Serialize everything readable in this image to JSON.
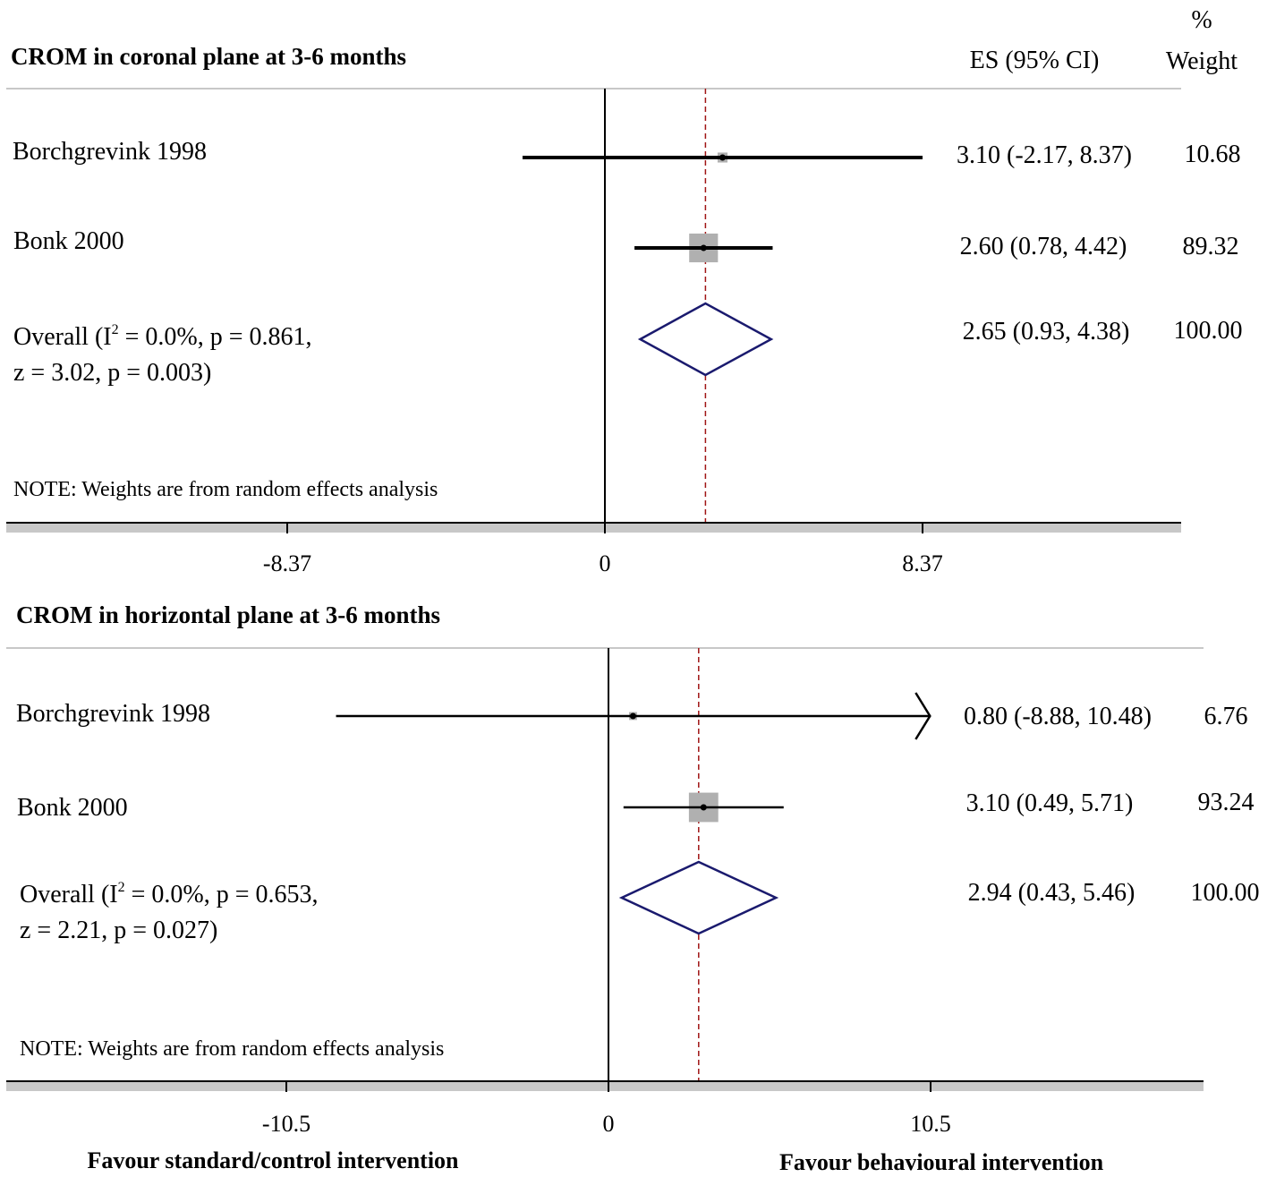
{
  "header": {
    "pct": "%",
    "es": "ES (95% CI)",
    "weight": "Weight"
  },
  "footer": {
    "left": "Favour standard/control intervention",
    "right": "Favour behavioural intervention"
  },
  "colors": {
    "ci_line": "#000000",
    "marker_box": "#b0b0b0",
    "diamond": "#1a1a6e",
    "overall_line": "#a01515",
    "rule": "#c8c8c8"
  },
  "chart_data": [
    {
      "type": "forest",
      "title": "CROM in coronal plane at 3-6 months",
      "note": "NOTE: Weights are from random effects analysis",
      "xlim": [
        -8.37,
        8.37
      ],
      "x_ticks": [
        -8.37,
        0,
        8.37
      ],
      "x_tick_labels": [
        "-8.37",
        "0",
        "8.37"
      ],
      "studies": [
        {
          "name": "Borchgrevink 1998",
          "es": 3.1,
          "lo": -2.17,
          "hi": 8.37,
          "es_text": "3.10 (-2.17, 8.37)",
          "weight": 10.68,
          "weight_text": "10.68"
        },
        {
          "name": "Bonk 2000",
          "es": 2.6,
          "lo": 0.78,
          "hi": 4.42,
          "es_text": "2.60 (0.78, 4.42)",
          "weight": 89.32,
          "weight_text": "89.32"
        }
      ],
      "overall": {
        "line1": "Overall (I",
        "sup": "2",
        "line1b": " = 0.0%, p = 0.861,",
        "line2": "z = 3.02, p = 0.003)",
        "es": 2.65,
        "lo": 0.93,
        "hi": 4.38,
        "es_text": "2.65 (0.93, 4.38)",
        "weight_text": "100.00"
      }
    },
    {
      "type": "forest",
      "title": "CROM in horizontal plane at 3-6 months",
      "note": "NOTE: Weights are from random effects analysis",
      "xlim": [
        -10.5,
        10.5
      ],
      "x_ticks": [
        -10.5,
        0,
        10.5
      ],
      "x_tick_labels": [
        "-10.5",
        "0",
        "10.5"
      ],
      "studies": [
        {
          "name": "Borchgrevink 1998",
          "es": 0.8,
          "lo": -8.88,
          "hi": 10.48,
          "es_text": "0.80 (-8.88, 10.48)",
          "weight": 6.76,
          "weight_text": "6.76",
          "truncated_hi": true
        },
        {
          "name": "Bonk 2000",
          "es": 3.1,
          "lo": 0.49,
          "hi": 5.71,
          "es_text": "3.10 (0.49, 5.71)",
          "weight": 93.24,
          "weight_text": "93.24"
        }
      ],
      "overall": {
        "line1": "Overall (I",
        "sup": "2",
        "line1b": " = 0.0%, p = 0.653,",
        "line2": "z = 2.21, p = 0.027)",
        "es": 2.94,
        "lo": 0.43,
        "hi": 5.46,
        "es_text": "2.94 (0.43, 5.46)",
        "weight_text": "100.00"
      }
    }
  ]
}
